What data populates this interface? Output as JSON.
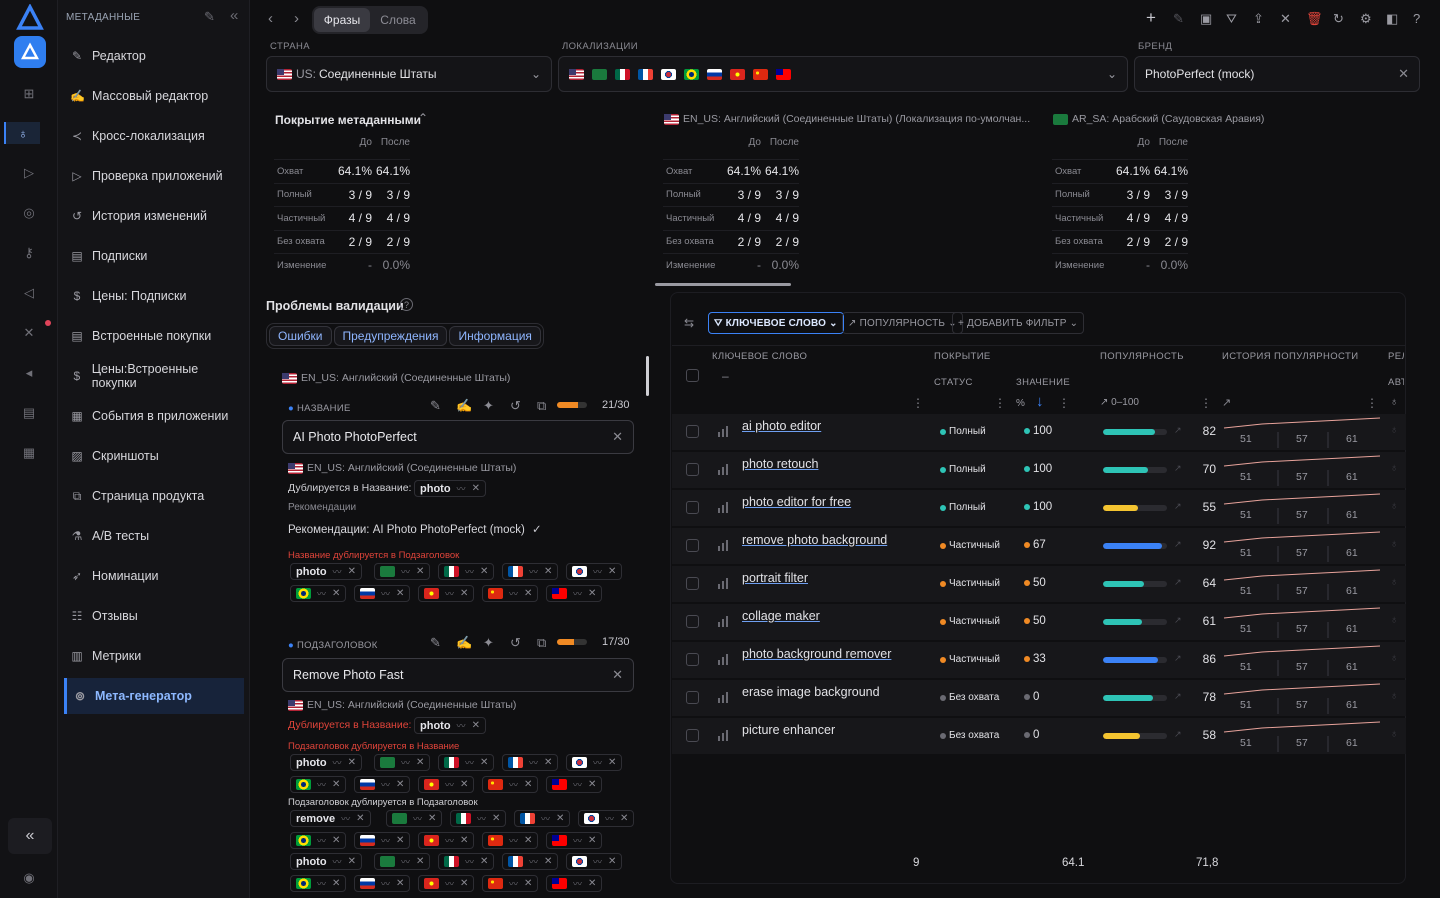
{
  "sidebar": {
    "header": "МЕТАДАННЫЕ",
    "items": [
      {
        "label": "Редактор",
        "icon": "pencil-icon"
      },
      {
        "label": "Массовый редактор",
        "icon": "edit-box-icon"
      },
      {
        "label": "Кросс-локализация",
        "icon": "share-icon"
      },
      {
        "label": "Проверка приложений",
        "icon": "play-icon"
      },
      {
        "label": "История изменений",
        "icon": "history-icon"
      },
      {
        "label": "Подписки",
        "icon": "document-icon"
      },
      {
        "label": "Цены: Подписки",
        "icon": "dollar-icon"
      },
      {
        "label": "Встроенные покупки",
        "icon": "document-icon"
      },
      {
        "label": "Цены:Встроенные покупки",
        "icon": "dollar-icon"
      },
      {
        "label": "События в приложении",
        "icon": "calendar-icon"
      },
      {
        "label": "Скриншоты",
        "icon": "image-icon"
      },
      {
        "label": "Страница продукта",
        "icon": "copy-icon"
      },
      {
        "label": "A/B тесты",
        "icon": "flask-icon"
      },
      {
        "label": "Номинации",
        "icon": "rocket-icon"
      },
      {
        "label": "Отзывы",
        "icon": "review-icon"
      },
      {
        "label": "Метрики",
        "icon": "chart-icon"
      },
      {
        "label": "Мета-генератор",
        "icon": "generator-icon"
      }
    ]
  },
  "toolbar": {
    "tab_phrases": "Фразы",
    "tab_words": "Слова"
  },
  "filters": {
    "country_label": "СТРАНА",
    "country_code": "US:",
    "country_value": "Соединенные Штаты",
    "loc_label": "ЛОКАЛИЗАЦИИ",
    "brand_label": "БРЕНД",
    "brand_value": "PhotoPerfect (mock)"
  },
  "coverage": {
    "title": "Покрытие метаданными",
    "before": "До",
    "after": "После",
    "rows": [
      {
        "label": "Охват",
        "before": "64.1%",
        "after": "64.1%"
      },
      {
        "label": "Полный",
        "before": "3 / 9",
        "after": "3 / 9"
      },
      {
        "label": "Частичный",
        "before": "4 / 9",
        "after": "4 / 9"
      },
      {
        "label": "Без охвата",
        "before": "2 / 9",
        "after": "2 / 9"
      },
      {
        "label": "Изменение",
        "before": "-",
        "after": "0.0%"
      }
    ],
    "loc1": "EN_US: Английский (Соединенные Штаты) (Локализация по-умолчан...",
    "loc2": "AR_SA: Арабский (Саудовская Аравия)"
  },
  "validation": {
    "title": "Проблемы валидации",
    "tabs": [
      "Ошибки",
      "Предупреждения",
      "Информация"
    ],
    "locale": "EN_US: Английский (Соединенные Штаты)",
    "name_label": "НАЗВАНИЕ",
    "name_count": "21/30",
    "name_progress": 0.7,
    "name_value": "AI Photo PhotoPerfect",
    "dup_in_name": "Дублируется в Название:",
    "rec_label": "Рекомендации",
    "rec_text": "Рекомендации: AI Photo PhotoPerfect (mock)",
    "name_dup_sub": "Название дублируется в Подзаголовок",
    "subtitle_label": "ПОДЗАГОЛОВОК",
    "subtitle_count": "17/30",
    "subtitle_progress": 0.57,
    "subtitle_value": "Remove Photo Fast",
    "sub_dup_name": "Подзаголовок дублируется в Название",
    "sub_dup_sub": "Подзаголовок дублируется в Подзаголовок",
    "word_photo": "photo",
    "word_remove": "remove"
  },
  "keywords": {
    "filter_keyword": "КЛЮЧЕВОЕ СЛОВО",
    "filter_popularity": "ПОПУЛЯРНОСТЬ",
    "filter_add": "ДОБАВИТЬ ФИЛЬТР",
    "col_keyword": "КЛЮЧЕВОЕ СЛОВО",
    "col_coverage": "ПОКРЫТИЕ",
    "col_popularity": "ПОПУЛЯРНОСТЬ",
    "col_history": "ИСТОРИЯ ПОПУЛЯРНОСТИ",
    "col_rel": "РЕЛ",
    "sub_status": "СТАТУС",
    "sub_value": "ЗНАЧЕНИЕ",
    "sub_pct": "%",
    "sub_range": "0–100",
    "sub_abt": "АВТ",
    "dash": "–",
    "hist_ticks": [
      "51",
      "57",
      "61"
    ],
    "rows": [
      {
        "keyword": "ai photo editor",
        "status": "Полный",
        "value": "100",
        "popularity": 82,
        "color": "#2ec4b6"
      },
      {
        "keyword": "photo retouch",
        "status": "Полный",
        "value": "100",
        "popularity": 70,
        "color": "#2ec4b6"
      },
      {
        "keyword": "photo editor for free",
        "status": "Полный",
        "value": "100",
        "popularity": 55,
        "color": "#f4c430"
      },
      {
        "keyword": "remove photo background",
        "status": "Частичный",
        "value": "67",
        "popularity": 92,
        "color": "#3b82f6"
      },
      {
        "keyword": "portrait filter",
        "status": "Частичный",
        "value": "50",
        "popularity": 64,
        "color": "#2ec4b6"
      },
      {
        "keyword": "collage maker",
        "status": "Частичный",
        "value": "50",
        "popularity": 61,
        "color": "#2ec4b6"
      },
      {
        "keyword": "photo background remover",
        "status": "Частичный",
        "value": "33",
        "popularity": 86,
        "color": "#3b82f6"
      },
      {
        "keyword": "erase image background",
        "status": "Без охвата",
        "value": "0",
        "popularity": 78,
        "color": "#2ec4b6"
      },
      {
        "keyword": "picture enhancer",
        "status": "Без охвата",
        "value": "0",
        "popularity": 58,
        "color": "#f4c430"
      }
    ],
    "footer_count": "9",
    "footer_coverage": "64.1",
    "footer_popularity": "71,8"
  }
}
